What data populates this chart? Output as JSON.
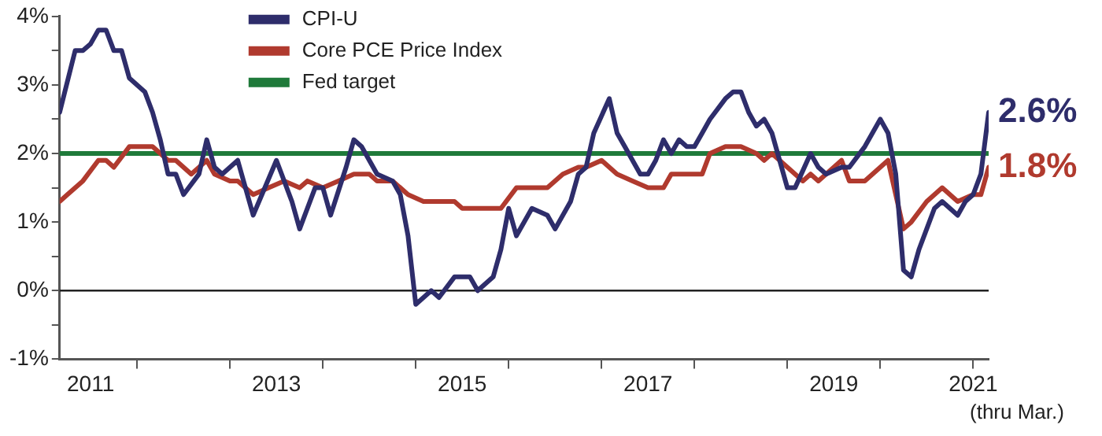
{
  "chart_data": {
    "type": "line",
    "legend": "top left",
    "marker": "none",
    "line_style": "solid",
    "xlim": [
      "2011-03",
      "2021-03"
    ],
    "xticks": [
      {
        "value": "2011-07",
        "label": "2011"
      },
      {
        "value": "2012",
        "label": null
      },
      {
        "value": "2013",
        "label": null
      },
      {
        "value": "2013-07",
        "label": "2013"
      },
      {
        "value": "2014",
        "label": null
      },
      {
        "value": "2015",
        "label": null
      },
      {
        "value": "2015-07",
        "label": "2015"
      },
      {
        "value": "2016",
        "label": null
      },
      {
        "value": "2017",
        "label": null
      },
      {
        "value": "2017-07",
        "label": "2017"
      },
      {
        "value": "2018",
        "label": null
      },
      {
        "value": "2019",
        "label": null
      },
      {
        "value": "2019-07",
        "label": "2019"
      },
      {
        "value": "2020",
        "label": null
      },
      {
        "value": "2021",
        "label": "2021"
      }
    ],
    "annotations": [
      "(thru Mar.)"
    ],
    "ylim": [
      -1,
      4
    ],
    "yticks": [
      {
        "value": -1,
        "label": "-1%"
      },
      {
        "value": -0.5,
        "label": null
      },
      {
        "value": 0,
        "label": "0%"
      },
      {
        "value": 0.5,
        "label": null
      },
      {
        "value": 1,
        "label": "1%"
      },
      {
        "value": 1.5,
        "label": null
      },
      {
        "value": 2,
        "label": "2%"
      },
      {
        "value": 2.5,
        "label": null
      },
      {
        "value": 3,
        "label": "3%"
      },
      {
        "value": 3.5,
        "label": null
      },
      {
        "value": 4,
        "label": "4%"
      }
    ],
    "ref_lines": [
      {
        "axis": "y",
        "value": 2,
        "label": "Fed target",
        "color": "#1f7a3a"
      },
      {
        "axis": "y",
        "value": 0,
        "color": "#222222"
      }
    ],
    "series": [
      {
        "name": "CPI-U",
        "color": "#2e2d6b",
        "x": [
          "2011-03",
          "2011-05",
          "2011-06",
          "2011-07",
          "2011-08",
          "2011-09",
          "2011-10",
          "2011-11",
          "2011-12",
          "2012-02",
          "2012-03",
          "2012-04",
          "2012-05",
          "2012-06",
          "2012-07",
          "2012-09",
          "2012-10",
          "2012-11",
          "2012-12",
          "2013-02",
          "2013-04",
          "2013-07",
          "2013-09",
          "2013-10",
          "2013-12",
          "2014-01",
          "2014-02",
          "2014-04",
          "2014-05",
          "2014-06",
          "2014-08",
          "2014-10",
          "2014-11",
          "2014-12",
          "2015-01",
          "2015-02",
          "2015-03",
          "2015-04",
          "2015-06",
          "2015-08",
          "2015-09",
          "2015-11",
          "2015-12",
          "2016-01",
          "2016-02",
          "2016-04",
          "2016-06",
          "2016-07",
          "2016-09",
          "2016-10",
          "2016-11",
          "2016-12",
          "2017-02",
          "2017-03",
          "2017-04",
          "2017-06",
          "2017-07",
          "2017-08",
          "2017-09",
          "2017-10",
          "2017-11",
          "2017-12",
          "2018-01",
          "2018-02",
          "2018-03",
          "2018-05",
          "2018-06",
          "2018-07",
          "2018-08",
          "2018-09",
          "2018-10",
          "2018-11",
          "2019-01",
          "2019-02",
          "2019-04",
          "2019-05",
          "2019-06",
          "2019-08",
          "2019-09",
          "2019-11",
          "2020-01",
          "2020-02",
          "2020-03",
          "2020-04",
          "2020-05",
          "2020-06",
          "2020-07",
          "2020-08",
          "2020-09",
          "2020-11",
          "2020-12",
          "2021-01",
          "2021-02",
          "2021-03"
        ],
        "values": [
          2.6,
          3.5,
          3.5,
          3.6,
          3.8,
          3.8,
          3.5,
          3.5,
          3.1,
          2.9,
          2.6,
          2.2,
          1.7,
          1.7,
          1.4,
          1.7,
          2.2,
          1.8,
          1.7,
          1.9,
          1.1,
          1.9,
          1.3,
          0.9,
          1.5,
          1.5,
          1.1,
          1.8,
          2.2,
          2.1,
          1.7,
          1.6,
          1.4,
          0.8,
          -0.2,
          -0.1,
          0.0,
          -0.1,
          0.2,
          0.2,
          0.0,
          0.2,
          0.6,
          1.2,
          0.8,
          1.2,
          1.1,
          0.9,
          1.3,
          1.7,
          1.8,
          2.3,
          2.8,
          2.3,
          2.1,
          1.7,
          1.7,
          1.9,
          2.2,
          2.0,
          2.2,
          2.1,
          2.1,
          2.3,
          2.5,
          2.8,
          2.9,
          2.9,
          2.6,
          2.4,
          2.5,
          2.3,
          1.5,
          1.5,
          2.0,
          1.8,
          1.7,
          1.8,
          1.8,
          2.1,
          2.5,
          2.3,
          1.7,
          0.3,
          0.2,
          0.6,
          0.9,
          1.2,
          1.3,
          1.1,
          1.3,
          1.4,
          1.7,
          2.6
        ],
        "value_labels": [
          null,
          null,
          null,
          null,
          null,
          null,
          null,
          null,
          null,
          null,
          null,
          null,
          null,
          null,
          null,
          null,
          null,
          null,
          null,
          null,
          null,
          null,
          null,
          null,
          null,
          null,
          null,
          null,
          null,
          null,
          null,
          null,
          null,
          null,
          null,
          null,
          null,
          null,
          null,
          null,
          null,
          null,
          null,
          null,
          null,
          null,
          null,
          null,
          null,
          null,
          null,
          null,
          null,
          null,
          null,
          null,
          null,
          null,
          null,
          null,
          null,
          null,
          null,
          null,
          null,
          null,
          null,
          null,
          null,
          null,
          null,
          null,
          null,
          null,
          null,
          null,
          null,
          null,
          null,
          null,
          null,
          null,
          null,
          null,
          null,
          null,
          null,
          null,
          null,
          null,
          null,
          null,
          null,
          "2.6%"
        ]
      },
      {
        "name": "Core PCE Price Index",
        "color": "#b03a2e",
        "x": [
          "2011-03",
          "2011-04",
          "2011-06",
          "2011-08",
          "2011-09",
          "2011-10",
          "2011-12",
          "2012-03",
          "2012-05",
          "2012-06",
          "2012-08",
          "2012-10",
          "2012-11",
          "2013-01",
          "2013-02",
          "2013-04",
          "2013-06",
          "2013-08",
          "2013-10",
          "2013-11",
          "2014-01",
          "2014-03",
          "2014-05",
          "2014-07",
          "2014-08",
          "2014-10",
          "2014-12",
          "2015-02",
          "2015-06",
          "2015-07",
          "2015-12",
          "2016-02",
          "2016-06",
          "2016-08",
          "2016-10",
          "2016-11",
          "2017-01",
          "2017-03",
          "2017-05",
          "2017-07",
          "2017-09",
          "2017-10",
          "2018-02",
          "2018-03",
          "2018-05",
          "2018-07",
          "2018-09",
          "2018-10",
          "2018-11",
          "2019-01",
          "2019-03",
          "2019-04",
          "2019-05",
          "2019-08",
          "2019-09",
          "2019-11",
          "2020-02",
          "2020-04",
          "2020-05",
          "2020-07",
          "2020-09",
          "2020-11",
          "2021-01",
          "2021-02",
          "2021-03"
        ],
        "values": [
          1.3,
          1.4,
          1.6,
          1.9,
          1.9,
          1.8,
          2.1,
          2.1,
          1.9,
          1.9,
          1.7,
          1.9,
          1.7,
          1.6,
          1.6,
          1.4,
          1.5,
          1.6,
          1.5,
          1.6,
          1.5,
          1.6,
          1.7,
          1.7,
          1.6,
          1.6,
          1.4,
          1.3,
          1.3,
          1.2,
          1.2,
          1.5,
          1.5,
          1.7,
          1.8,
          1.8,
          1.9,
          1.7,
          1.6,
          1.5,
          1.5,
          1.7,
          1.7,
          2.0,
          2.1,
          2.1,
          2.0,
          1.9,
          2.0,
          1.8,
          1.6,
          1.7,
          1.6,
          1.9,
          1.6,
          1.6,
          1.9,
          0.9,
          1.0,
          1.3,
          1.5,
          1.3,
          1.4,
          1.4,
          1.8
        ],
        "value_labels": [
          null,
          null,
          null,
          null,
          null,
          null,
          null,
          null,
          null,
          null,
          null,
          null,
          null,
          null,
          null,
          null,
          null,
          null,
          null,
          null,
          null,
          null,
          null,
          null,
          null,
          null,
          null,
          null,
          null,
          null,
          null,
          null,
          null,
          null,
          null,
          null,
          null,
          null,
          null,
          null,
          null,
          null,
          null,
          null,
          null,
          null,
          null,
          null,
          null,
          null,
          null,
          null,
          null,
          null,
          null,
          null,
          null,
          null,
          null,
          null,
          null,
          null,
          null,
          null,
          "1.8%"
        ]
      }
    ]
  }
}
